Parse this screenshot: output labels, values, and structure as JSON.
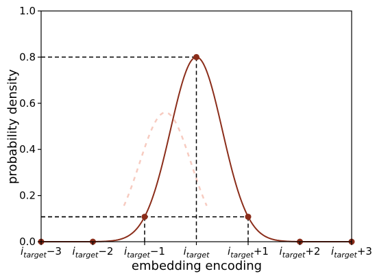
{
  "chart_data": {
    "type": "line",
    "title": "",
    "xlabel": "embedding encoding",
    "ylabel": "probability density",
    "xlim": [
      -3,
      3
    ],
    "ylim": [
      0,
      1.0
    ],
    "x_tick_labels": [
      {
        "base": "i",
        "sub": "target",
        "suffix": "−3",
        "x": -3
      },
      {
        "base": "i",
        "sub": "target",
        "suffix": "−2",
        "x": -2
      },
      {
        "base": "i",
        "sub": "target",
        "suffix": "−1",
        "x": -1
      },
      {
        "base": "i",
        "sub": "target",
        "suffix": "",
        "x": 0
      },
      {
        "base": "i",
        "sub": "target",
        "suffix": "+1",
        "x": 1
      },
      {
        "base": "i",
        "sub": "target",
        "suffix": "+2",
        "x": 2
      },
      {
        "base": "i",
        "sub": "target",
        "suffix": "+3",
        "x": 3
      }
    ],
    "y_ticks": [
      "0.0",
      "0.2",
      "0.4",
      "0.6",
      "0.8",
      "1.0"
    ],
    "y_tick_values": [
      0.0,
      0.2,
      0.4,
      0.6,
      0.8,
      1.0
    ],
    "series": [
      {
        "color": "#8b2d1a",
        "curve": {
          "peak": 0.8,
          "center": 0,
          "sigma": 0.5
        },
        "points": [
          {
            "x": -3,
            "y": 0.0
          },
          {
            "x": -2,
            "y": 0.0
          },
          {
            "x": -1,
            "y": 0.108
          },
          {
            "x": 0,
            "y": 0.8
          },
          {
            "x": 1,
            "y": 0.108
          },
          {
            "x": 2,
            "y": 0.0
          },
          {
            "x": 3,
            "y": 0.0
          }
        ]
      }
    ],
    "reference_lines": [
      {
        "x": 0,
        "y": 0.8
      },
      {
        "x": -1,
        "y": 0.108
      },
      {
        "x": 1,
        "y": 0.108
      }
    ],
    "ghost_curve": {
      "color": "#f0a08c",
      "peak": 0.56,
      "center": -0.6,
      "sigma": 0.5,
      "x_range": [
        -1.4,
        0.2
      ]
    },
    "grid": false,
    "legend": "none"
  }
}
